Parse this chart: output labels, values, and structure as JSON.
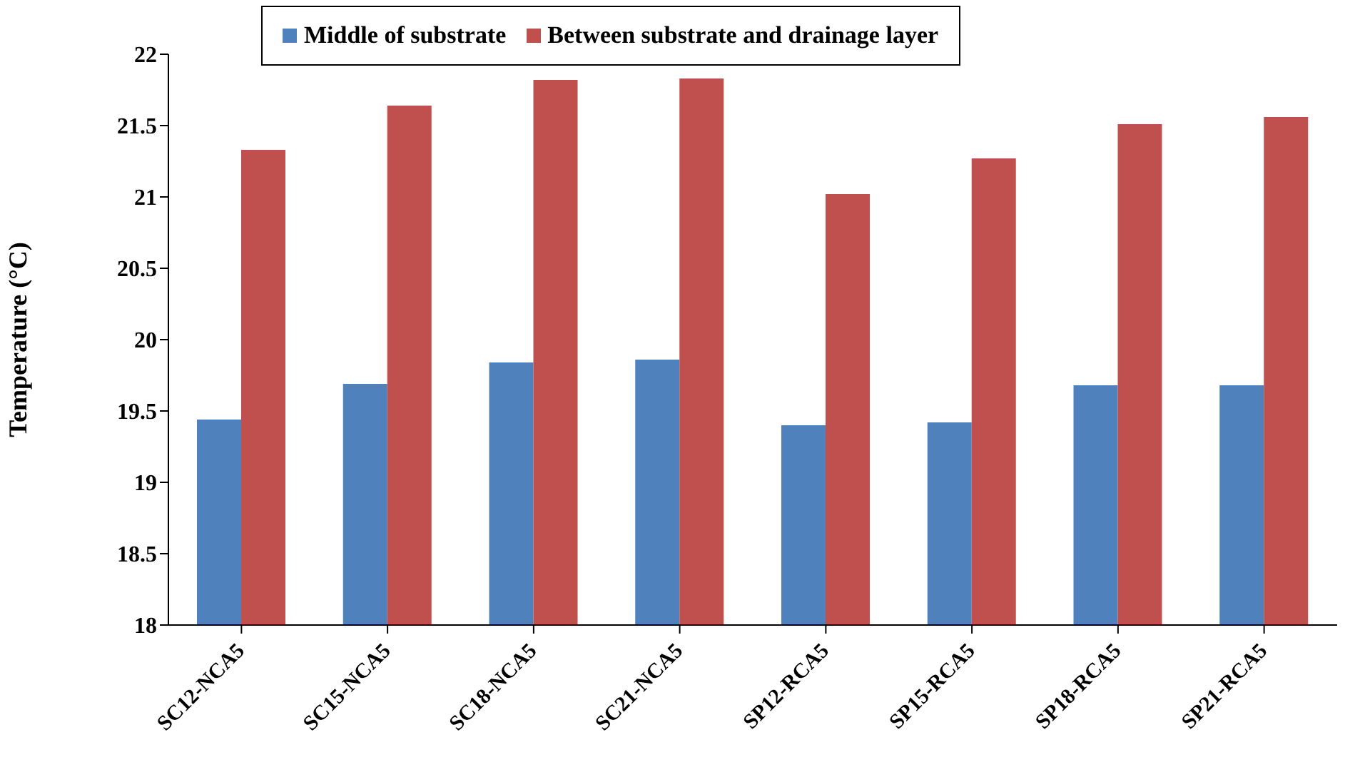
{
  "chart_data": {
    "type": "bar",
    "ylabel": "Temperature (°C)",
    "categories": [
      "SC12-NCA5",
      "SC15-NCA5",
      "SC18-NCA5",
      "SC21-NCA5",
      "SP12-RCA5",
      "SP15-RCA5",
      "SP18-RCA5",
      "SP21-RCA5"
    ],
    "series": [
      {
        "name": "Middle of substrate",
        "color": "#4f81bd",
        "values": [
          19.44,
          19.69,
          19.84,
          19.86,
          19.4,
          19.42,
          19.68,
          19.68
        ]
      },
      {
        "name": "Between substrate and drainage layer",
        "color": "#c0504d",
        "values": [
          21.33,
          21.64,
          21.82,
          21.83,
          21.02,
          21.27,
          21.51,
          21.56
        ]
      }
    ],
    "ylim": [
      18,
      22
    ],
    "yticks": [
      18,
      18.5,
      19,
      19.5,
      20,
      20.5,
      21,
      21.5,
      22
    ],
    "grid": false,
    "legend": "top"
  }
}
